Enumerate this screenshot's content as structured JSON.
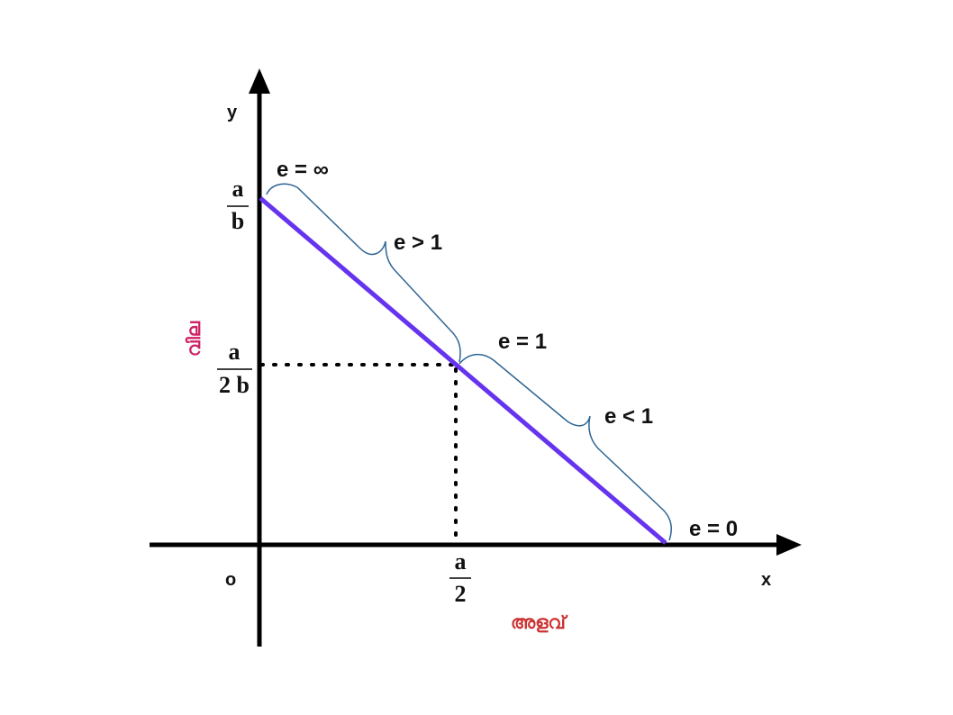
{
  "axes": {
    "x_name": "x",
    "y_name": "y",
    "origin": "o",
    "x_title": "അളവ്",
    "y_title": "വില"
  },
  "ticks": {
    "y_top": {
      "num": "a",
      "den": "b"
    },
    "y_mid": {
      "num": "a",
      "den": "2 b"
    },
    "x_mid": {
      "num": "a",
      "den": "2"
    }
  },
  "segments": {
    "e_infinite": "e = ∞",
    "e_gt1": "e > 1",
    "e_eq1": "e = 1",
    "e_lt1": "e < 1",
    "e_zero": "e = 0"
  },
  "colors": {
    "line": "#6633ee",
    "brace": "#2e6594",
    "axis": "#000000",
    "x_title": "#cc3333",
    "y_title": "#cc2266"
  }
}
